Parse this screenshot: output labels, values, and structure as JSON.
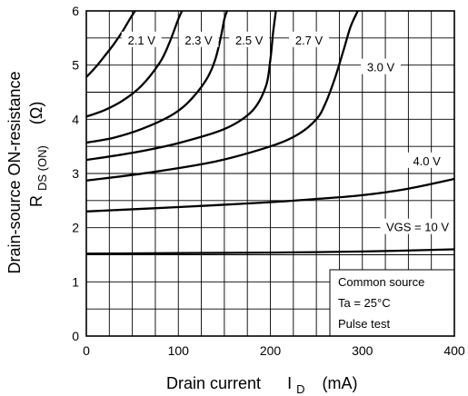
{
  "chart_data": {
    "type": "line",
    "xlabel_main": "Drain current",
    "xlabel_symbol": "I",
    "xlabel_sub": "D",
    "xlabel_unit": "(mA)",
    "ylabel_line1": "Drain-source ON-resistance",
    "ylabel_symbol": "R",
    "ylabel_sub": "DS (ON)",
    "ylabel_unit": "(Ω)",
    "xlim": [
      0,
      400
    ],
    "ylim": [
      0,
      6
    ],
    "xticks": [
      "0",
      "100",
      "200",
      "300",
      "400"
    ],
    "yticks": [
      "0",
      "1",
      "2",
      "3",
      "4",
      "5",
      "6"
    ],
    "grid": true,
    "series": [
      {
        "name": "2.1 V",
        "x": [
          0,
          10,
          20,
          30,
          40,
          48,
          53
        ],
        "y": [
          4.78,
          4.96,
          5.17,
          5.39,
          5.64,
          5.87,
          6.0
        ]
      },
      {
        "name": "2.3 V",
        "x": [
          0,
          20,
          40,
          60,
          80,
          90,
          100,
          104
        ],
        "y": [
          4.05,
          4.17,
          4.35,
          4.62,
          5.05,
          5.4,
          5.85,
          6.0
        ]
      },
      {
        "name": "2.5 V",
        "x": [
          0,
          30,
          60,
          90,
          110,
          130,
          140,
          146,
          150,
          153
        ],
        "y": [
          3.57,
          3.66,
          3.82,
          4.05,
          4.3,
          4.72,
          5.1,
          5.5,
          5.85,
          6.0
        ]
      },
      {
        "name": "2.7 V",
        "x": [
          0,
          50,
          100,
          150,
          180,
          195,
          200,
          203,
          206
        ],
        "y": [
          3.25,
          3.38,
          3.56,
          3.82,
          4.15,
          4.6,
          5.1,
          5.6,
          6.0
        ]
      },
      {
        "name": "3.0 V",
        "x": [
          0,
          70,
          140,
          200,
          230,
          250,
          260,
          270,
          280,
          287,
          295
        ],
        "y": [
          2.87,
          3.02,
          3.22,
          3.5,
          3.72,
          4.0,
          4.3,
          4.75,
          5.3,
          5.7,
          6.0
        ]
      },
      {
        "name": "4.0 V",
        "x": [
          0,
          100,
          200,
          250,
          300,
          350,
          400
        ],
        "y": [
          2.3,
          2.38,
          2.47,
          2.53,
          2.6,
          2.72,
          2.9
        ]
      },
      {
        "name": "VGS = 10 V",
        "x": [
          0,
          100,
          200,
          300,
          400
        ],
        "y": [
          1.52,
          1.53,
          1.54,
          1.56,
          1.6
        ]
      }
    ],
    "legend_box": [
      "Common source",
      "Ta = 25°C",
      "Pulse test"
    ]
  }
}
